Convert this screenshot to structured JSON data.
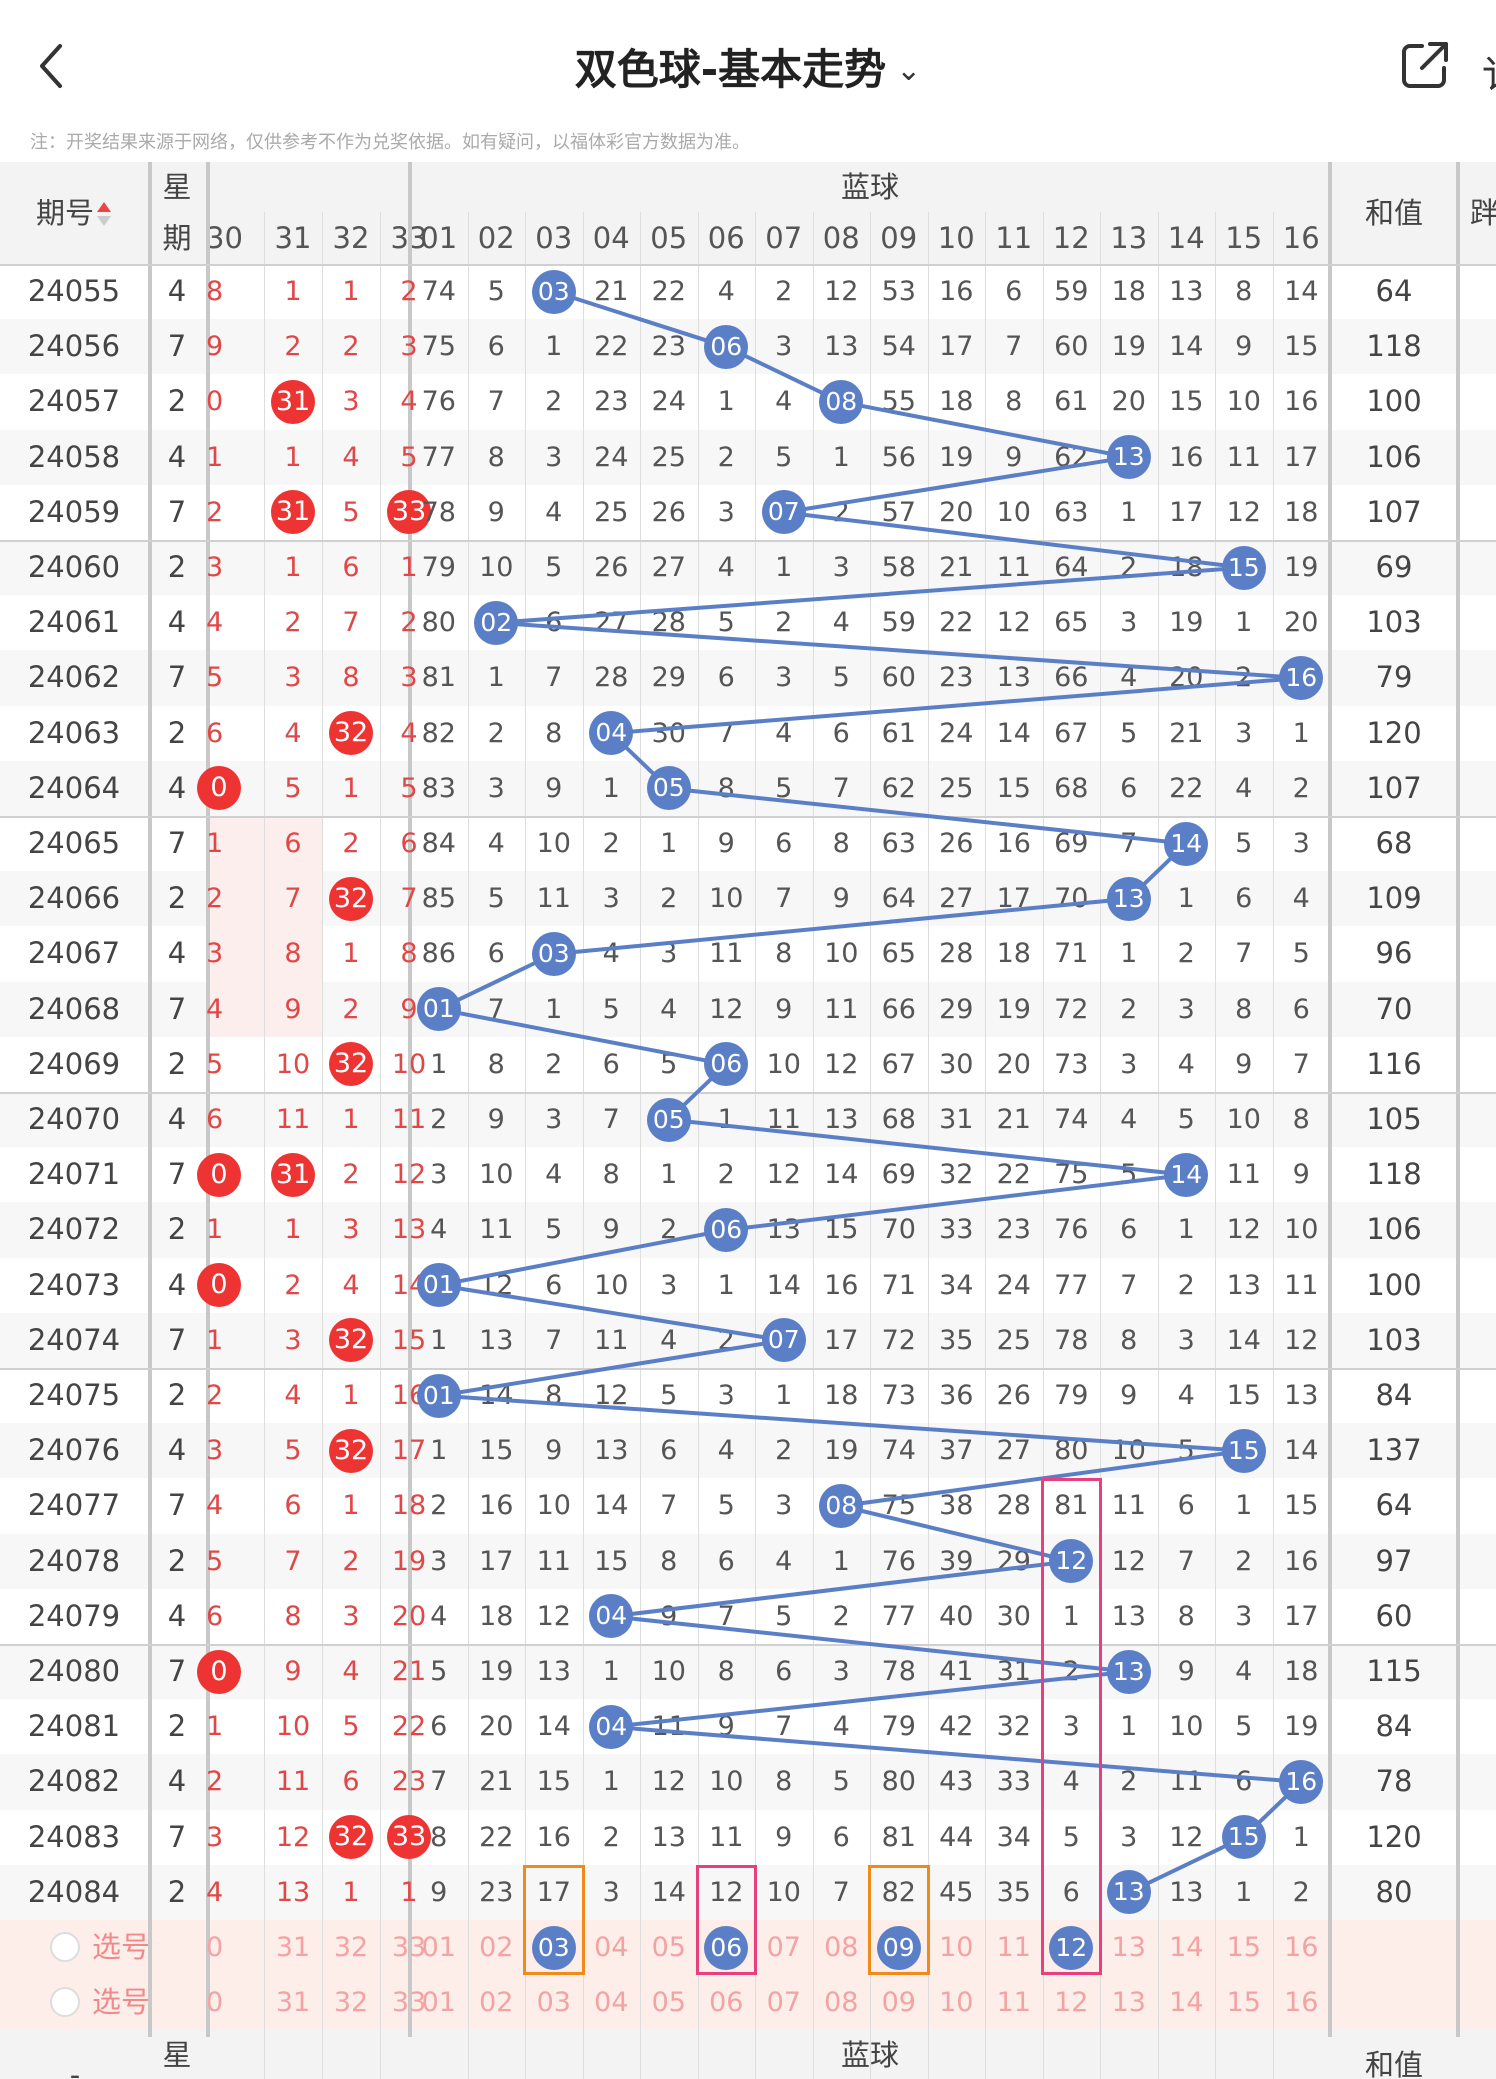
{
  "header": {
    "title": "双色球-基本走势",
    "edge_partial_text": "讠",
    "notice": "注：开奖结果来源于网络，仅供参考不作为兑奖依据。如有疑问，以福体彩官方数据为准。"
  },
  "table": {
    "issue_header": "期号",
    "week_header_top": "星",
    "week_header_bottom": "期",
    "blue_section_header": "蓝球",
    "sum_header": "和值",
    "edge_header_partial": "跘",
    "red_partial_columns": [
      "30",
      "31",
      "32",
      "33"
    ],
    "blue_columns": [
      "01",
      "02",
      "03",
      "04",
      "05",
      "06",
      "07",
      "08",
      "09",
      "10",
      "11",
      "12",
      "13",
      "14",
      "15",
      "16"
    ],
    "rows": [
      {
        "issue": "24055",
        "week": "4",
        "red": [
          "8",
          "1",
          "1",
          "2"
        ],
        "red_hit": [],
        "blue": [
          74,
          5,
          3,
          21,
          22,
          4,
          2,
          12,
          53,
          16,
          6,
          59,
          18,
          13,
          8,
          14
        ],
        "blue_hit": 3,
        "sum": "64"
      },
      {
        "issue": "24056",
        "week": "7",
        "red": [
          "9",
          "2",
          "2",
          "3"
        ],
        "red_hit": [],
        "blue": [
          75,
          6,
          1,
          22,
          23,
          6,
          3,
          13,
          54,
          17,
          7,
          60,
          19,
          14,
          9,
          15
        ],
        "blue_hit": 6,
        "sum": "118"
      },
      {
        "issue": "24057",
        "week": "2",
        "red": [
          "0",
          "31",
          "3",
          "4"
        ],
        "red_hit": [
          1
        ],
        "blue": [
          76,
          7,
          2,
          23,
          24,
          1,
          4,
          8,
          55,
          18,
          8,
          61,
          20,
          15,
          10,
          16
        ],
        "blue_hit": 8,
        "sum": "100"
      },
      {
        "issue": "24058",
        "week": "4",
        "red": [
          "1",
          "1",
          "4",
          "5"
        ],
        "red_hit": [],
        "blue": [
          77,
          8,
          3,
          24,
          25,
          2,
          5,
          1,
          56,
          19,
          9,
          62,
          13,
          16,
          11,
          17
        ],
        "blue_hit": 13,
        "sum": "106"
      },
      {
        "issue": "24059",
        "week": "7",
        "red": [
          "2",
          "31",
          "5",
          "33"
        ],
        "red_hit": [
          1,
          3
        ],
        "blue": [
          78,
          9,
          4,
          25,
          26,
          3,
          7,
          2,
          57,
          20,
          10,
          63,
          1,
          17,
          12,
          18
        ],
        "blue_hit": 7,
        "sum": "107"
      },
      {
        "issue": "24060",
        "week": "2",
        "red": [
          "3",
          "1",
          "6",
          "1"
        ],
        "red_hit": [],
        "blue": [
          79,
          10,
          5,
          26,
          27,
          4,
          1,
          3,
          58,
          21,
          11,
          64,
          2,
          18,
          15,
          19
        ],
        "blue_hit": 15,
        "sum": "69"
      },
      {
        "issue": "24061",
        "week": "4",
        "red": [
          "4",
          "2",
          "7",
          "2"
        ],
        "red_hit": [],
        "blue": [
          80,
          2,
          6,
          27,
          28,
          5,
          2,
          4,
          59,
          22,
          12,
          65,
          3,
          19,
          1,
          20
        ],
        "blue_hit": 2,
        "sum": "103"
      },
      {
        "issue": "24062",
        "week": "7",
        "red": [
          "5",
          "3",
          "8",
          "3"
        ],
        "red_hit": [],
        "blue": [
          81,
          1,
          7,
          28,
          29,
          6,
          3,
          5,
          60,
          23,
          13,
          66,
          4,
          20,
          2,
          16
        ],
        "blue_hit": 16,
        "sum": "79"
      },
      {
        "issue": "24063",
        "week": "2",
        "red": [
          "6",
          "4",
          "32",
          "4"
        ],
        "red_hit": [
          2
        ],
        "blue": [
          82,
          2,
          8,
          4,
          30,
          7,
          4,
          6,
          61,
          24,
          14,
          67,
          5,
          21,
          3,
          1
        ],
        "blue_hit": 4,
        "sum": "120"
      },
      {
        "issue": "24064",
        "week": "4",
        "red": [
          "0",
          "5",
          "1",
          "5"
        ],
        "red_hit": [
          0
        ],
        "blue": [
          83,
          3,
          9,
          1,
          5,
          8,
          5,
          7,
          62,
          25,
          15,
          68,
          6,
          22,
          4,
          2
        ],
        "blue_hit": 5,
        "sum": "107"
      },
      {
        "issue": "24065",
        "week": "7",
        "red": [
          "1",
          "6",
          "2",
          "6"
        ],
        "red_hit": [],
        "blue": [
          84,
          4,
          10,
          2,
          1,
          9,
          6,
          8,
          63,
          26,
          16,
          69,
          7,
          14,
          5,
          3
        ],
        "blue_hit": 14,
        "sum": "68"
      },
      {
        "issue": "24066",
        "week": "2",
        "red": [
          "2",
          "7",
          "32",
          "7"
        ],
        "red_hit": [
          2
        ],
        "blue": [
          85,
          5,
          11,
          3,
          2,
          10,
          7,
          9,
          64,
          27,
          17,
          70,
          13,
          1,
          6,
          4
        ],
        "blue_hit": 13,
        "sum": "109"
      },
      {
        "issue": "24067",
        "week": "4",
        "red": [
          "3",
          "8",
          "1",
          "8"
        ],
        "red_hit": [],
        "blue": [
          86,
          6,
          3,
          4,
          3,
          11,
          8,
          10,
          65,
          28,
          18,
          71,
          1,
          2,
          7,
          5
        ],
        "blue_hit": 3,
        "sum": "96"
      },
      {
        "issue": "24068",
        "week": "7",
        "red": [
          "4",
          "9",
          "2",
          "9"
        ],
        "red_hit": [],
        "blue": [
          1,
          7,
          1,
          5,
          4,
          12,
          9,
          11,
          66,
          29,
          19,
          72,
          2,
          3,
          8,
          6
        ],
        "blue_hit": 1,
        "sum": "70"
      },
      {
        "issue": "24069",
        "week": "2",
        "red": [
          "5",
          "10",
          "32",
          "10"
        ],
        "red_hit": [
          2
        ],
        "blue": [
          1,
          8,
          2,
          6,
          5,
          6,
          10,
          12,
          67,
          30,
          20,
          73,
          3,
          4,
          9,
          7
        ],
        "blue_hit": 6,
        "sum": "116"
      },
      {
        "issue": "24070",
        "week": "4",
        "red": [
          "6",
          "11",
          "1",
          "11"
        ],
        "red_hit": [],
        "blue": [
          2,
          9,
          3,
          7,
          5,
          1,
          11,
          13,
          68,
          31,
          21,
          74,
          4,
          5,
          10,
          8
        ],
        "blue_hit": 5,
        "sum": "105"
      },
      {
        "issue": "24071",
        "week": "7",
        "red": [
          "0",
          "31",
          "2",
          "12"
        ],
        "red_hit": [
          0,
          1
        ],
        "blue": [
          3,
          10,
          4,
          8,
          1,
          2,
          12,
          14,
          69,
          32,
          22,
          75,
          5,
          14,
          11,
          9
        ],
        "blue_hit": 14,
        "sum": "118"
      },
      {
        "issue": "24072",
        "week": "2",
        "red": [
          "1",
          "1",
          "3",
          "13"
        ],
        "red_hit": [],
        "blue": [
          4,
          11,
          5,
          9,
          2,
          6,
          13,
          15,
          70,
          33,
          23,
          76,
          6,
          1,
          12,
          10
        ],
        "blue_hit": 6,
        "sum": "106"
      },
      {
        "issue": "24073",
        "week": "4",
        "red": [
          "0",
          "2",
          "4",
          "14"
        ],
        "red_hit": [
          0
        ],
        "blue": [
          1,
          12,
          6,
          10,
          3,
          1,
          14,
          16,
          71,
          34,
          24,
          77,
          7,
          2,
          13,
          11
        ],
        "blue_hit": 1,
        "sum": "100"
      },
      {
        "issue": "24074",
        "week": "7",
        "red": [
          "1",
          "3",
          "32",
          "15"
        ],
        "red_hit": [
          2
        ],
        "blue": [
          1,
          13,
          7,
          11,
          4,
          2,
          7,
          17,
          72,
          35,
          25,
          78,
          8,
          3,
          14,
          12
        ],
        "blue_hit": 7,
        "sum": "103"
      },
      {
        "issue": "24075",
        "week": "2",
        "red": [
          "2",
          "4",
          "1",
          "16"
        ],
        "red_hit": [],
        "blue": [
          1,
          14,
          8,
          12,
          5,
          3,
          1,
          18,
          73,
          36,
          26,
          79,
          9,
          4,
          15,
          13
        ],
        "blue_hit": 1,
        "sum": "84"
      },
      {
        "issue": "24076",
        "week": "4",
        "red": [
          "3",
          "5",
          "32",
          "17"
        ],
        "red_hit": [
          2
        ],
        "blue": [
          1,
          15,
          9,
          13,
          6,
          4,
          2,
          19,
          74,
          37,
          27,
          80,
          10,
          5,
          15,
          14
        ],
        "blue_hit": 15,
        "sum": "137"
      },
      {
        "issue": "24077",
        "week": "7",
        "red": [
          "4",
          "6",
          "1",
          "18"
        ],
        "red_hit": [],
        "blue": [
          2,
          16,
          10,
          14,
          7,
          5,
          3,
          8,
          75,
          38,
          28,
          81,
          11,
          6,
          1,
          15
        ],
        "blue_hit": 8,
        "sum": "64"
      },
      {
        "issue": "24078",
        "week": "2",
        "red": [
          "5",
          "7",
          "2",
          "19"
        ],
        "red_hit": [],
        "blue": [
          3,
          17,
          11,
          15,
          8,
          6,
          4,
          1,
          76,
          39,
          29,
          12,
          12,
          7,
          2,
          16
        ],
        "blue_hit": 12,
        "sum": "97"
      },
      {
        "issue": "24079",
        "week": "4",
        "red": [
          "6",
          "8",
          "3",
          "20"
        ],
        "red_hit": [],
        "blue": [
          4,
          18,
          12,
          4,
          9,
          7,
          5,
          2,
          77,
          40,
          30,
          1,
          13,
          8,
          3,
          17
        ],
        "blue_hit": 4,
        "sum": "60"
      },
      {
        "issue": "24080",
        "week": "7",
        "red": [
          "0",
          "9",
          "4",
          "21"
        ],
        "red_hit": [
          0
        ],
        "blue": [
          5,
          19,
          13,
          1,
          10,
          8,
          6,
          3,
          78,
          41,
          31,
          2,
          13,
          9,
          4,
          18
        ],
        "blue_hit": 13,
        "sum": "115"
      },
      {
        "issue": "24081",
        "week": "2",
        "red": [
          "1",
          "10",
          "5",
          "22"
        ],
        "red_hit": [],
        "blue": [
          6,
          20,
          14,
          4,
          11,
          9,
          7,
          4,
          79,
          42,
          32,
          3,
          1,
          10,
          5,
          19
        ],
        "blue_hit": 4,
        "sum": "84"
      },
      {
        "issue": "24082",
        "week": "4",
        "red": [
          "2",
          "11",
          "6",
          "23"
        ],
        "red_hit": [],
        "blue": [
          7,
          21,
          15,
          1,
          12,
          10,
          8,
          5,
          80,
          43,
          33,
          4,
          2,
          11,
          6,
          16
        ],
        "blue_hit": 16,
        "sum": "78"
      },
      {
        "issue": "24083",
        "week": "7",
        "red": [
          "3",
          "12",
          "32",
          "33"
        ],
        "red_hit": [
          2,
          3
        ],
        "blue": [
          8,
          22,
          16,
          2,
          13,
          11,
          9,
          6,
          81,
          44,
          34,
          5,
          3,
          12,
          15,
          1
        ],
        "blue_hit": 15,
        "sum": "120"
      },
      {
        "issue": "24084",
        "week": "2",
        "red": [
          "4",
          "13",
          "1",
          "1"
        ],
        "red_hit": [],
        "blue": [
          9,
          23,
          17,
          3,
          14,
          12,
          10,
          7,
          82,
          45,
          35,
          6,
          13,
          13,
          1,
          2
        ],
        "blue_hit": 13,
        "sum": "80"
      }
    ],
    "select_label": "选号",
    "select_red": [
      "0",
      "31",
      "32",
      "33"
    ],
    "select_blue": [
      "01",
      "02",
      "03",
      "04",
      "05",
      "06",
      "07",
      "08",
      "09",
      "10",
      "11",
      "12",
      "13",
      "14",
      "15",
      "16"
    ],
    "select_row1_hits": [
      3,
      6,
      9,
      12
    ],
    "footer_week": "星",
    "footer_issue": "-",
    "footer_blue": "蓝球",
    "footer_sum": "和值"
  },
  "colors": {
    "red_ball": "#ee3333",
    "blue_ball": "#5b7fc6",
    "trend_line": "#5b7fc6",
    "red_text": "#e04848",
    "box_orange": "#f08a1c",
    "box_pink": "#e8407f",
    "select_band": "#fdeeea"
  },
  "icons": {
    "back": "chevron-left-icon",
    "title_dropdown": "chevron-down-icon",
    "share": "share-icon",
    "sort": "sort-icon"
  }
}
